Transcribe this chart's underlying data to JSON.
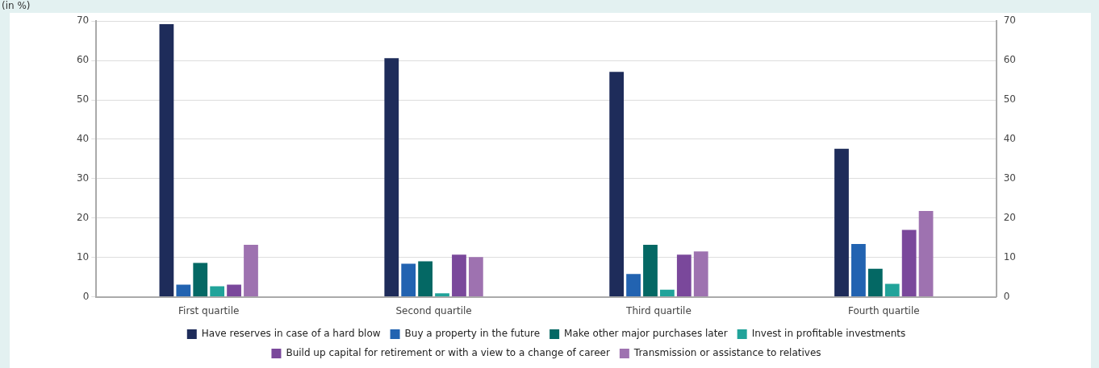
{
  "chart_data": {
    "type": "bar",
    "ylabel": "(in %)",
    "categories": [
      "First quartile",
      "Second quartile",
      "Third quartile",
      "Fourth quartile"
    ],
    "series": [
      {
        "name": "Have reserves in case of a hard blow",
        "color": "#1e2c5a",
        "values": [
          69.2,
          60.6,
          57.1,
          37.6
        ]
      },
      {
        "name": "Buy a property in the future",
        "color": "#2263b1",
        "values": [
          3.1,
          8.4,
          5.8,
          13.4
        ]
      },
      {
        "name": "Make other major purchases later",
        "color": "#046864",
        "values": [
          8.6,
          9.0,
          13.2,
          7.1
        ]
      },
      {
        "name": "Invest in profitable investments",
        "color": "#21a39a",
        "values": [
          2.7,
          0.9,
          1.8,
          3.3
        ]
      },
      {
        "name": "Build up capital for retirement or with a view to a change of career",
        "color": "#7a489b",
        "values": [
          3.1,
          10.7,
          10.7,
          17.0
        ]
      },
      {
        "name": "Transmission or assistance to relatives",
        "color": "#9e72b0",
        "values": [
          13.2,
          10.1,
          11.5,
          21.8
        ]
      }
    ],
    "ylim": [
      0,
      70
    ],
    "yticks": [
      0,
      10,
      20,
      30,
      40,
      50,
      60,
      70
    ],
    "y2lim": [
      0,
      70
    ],
    "y2ticks": [
      0,
      10,
      20,
      30,
      40,
      50,
      60,
      70
    ],
    "grid": "y",
    "legend": "bottom"
  }
}
